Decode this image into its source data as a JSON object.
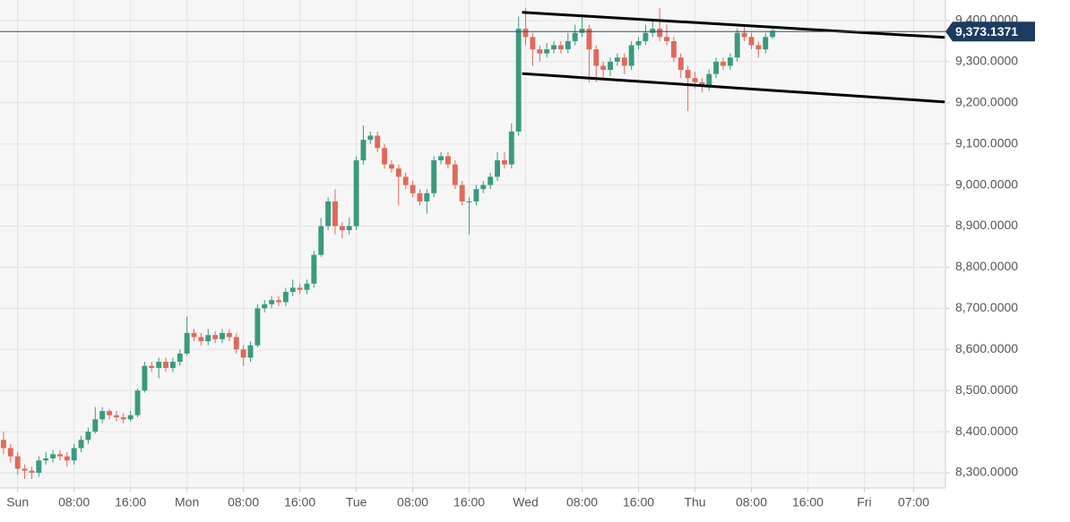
{
  "chart_data": {
    "type": "candlestick",
    "x": [
      -2,
      -1,
      0,
      1,
      2,
      3,
      4,
      5,
      6,
      7,
      8,
      9,
      10,
      11,
      12,
      13,
      14,
      15,
      16,
      17,
      18,
      19,
      20,
      21,
      22,
      23,
      24,
      25,
      26,
      27,
      28,
      29,
      30,
      31,
      32,
      33,
      34,
      35,
      36,
      37,
      38,
      39,
      40,
      41,
      42,
      43,
      44,
      45,
      46,
      47,
      48,
      49,
      50,
      51,
      52,
      53,
      54,
      55,
      56,
      57,
      58,
      59,
      60,
      61,
      62,
      63,
      64,
      65,
      66,
      67,
      68,
      69,
      70,
      71,
      72,
      73,
      74,
      75,
      76,
      77,
      78,
      79,
      80,
      81,
      82,
      83,
      84,
      85,
      86,
      87,
      88,
      89,
      90,
      91,
      92,
      93,
      94,
      95,
      96,
      97,
      98,
      99,
      100,
      101,
      102,
      103,
      104,
      105,
      106,
      107
    ],
    "open": [
      8380,
      8360,
      8340,
      8310,
      8305,
      8300,
      8330,
      8335,
      8345,
      8340,
      8330,
      8360,
      8380,
      8400,
      8430,
      8450,
      8440,
      8435,
      8430,
      8440,
      8500,
      8560,
      8555,
      8570,
      8555,
      8570,
      8590,
      8640,
      8630,
      8620,
      8635,
      8625,
      8640,
      8630,
      8600,
      8580,
      8610,
      8700,
      8710,
      8720,
      8715,
      8740,
      8750,
      8745,
      8760,
      8830,
      8900,
      8960,
      8900,
      8890,
      8900,
      9060,
      9110,
      9120,
      9090,
      9050,
      9040,
      9020,
      9000,
      8980,
      8960,
      8980,
      9060,
      9070,
      9050,
      9000,
      8960,
      8960,
      8990,
      9000,
      9020,
      9060,
      9050,
      9130,
      9380,
      9360,
      9330,
      9320,
      9330,
      9340,
      9330,
      9350,
      9370,
      9380,
      9330,
      9290,
      9280,
      9300,
      9310,
      9290,
      9340,
      9350,
      9370,
      9380,
      9360,
      9350,
      9310,
      9280,
      9260,
      9250,
      9240,
      9270,
      9300,
      9290,
      9310,
      9370,
      9360,
      9340,
      9330,
      9360
    ],
    "high": [
      8400,
      8370,
      8350,
      8320,
      8315,
      8340,
      8350,
      8355,
      8355,
      8350,
      8370,
      8390,
      8410,
      8460,
      8460,
      8455,
      8450,
      8445,
      8450,
      8505,
      8570,
      8570,
      8580,
      8580,
      8580,
      8600,
      8680,
      8650,
      8640,
      8650,
      8645,
      8650,
      8650,
      8640,
      8610,
      8620,
      8710,
      8720,
      8730,
      8730,
      8750,
      8770,
      8760,
      8770,
      8840,
      8920,
      8970,
      8990,
      8910,
      8920,
      9070,
      9145,
      9130,
      9130,
      9100,
      9060,
      9050,
      9030,
      9010,
      8990,
      8990,
      9070,
      9080,
      9080,
      9060,
      9010,
      8970,
      9000,
      9010,
      9030,
      9080,
      9080,
      9150,
      9410,
      9430,
      9370,
      9340,
      9345,
      9350,
      9350,
      9370,
      9390,
      9410,
      9390,
      9340,
      9300,
      9310,
      9320,
      9320,
      9350,
      9360,
      9390,
      9400,
      9430,
      9390,
      9360,
      9320,
      9290,
      9275,
      9260,
      9280,
      9310,
      9310,
      9320,
      9380,
      9385,
      9370,
      9350,
      9370,
      9385
    ],
    "low": [
      8345,
      8325,
      8295,
      8285,
      8285,
      8290,
      8320,
      8325,
      8330,
      8315,
      8320,
      8350,
      8370,
      8395,
      8420,
      8430,
      8425,
      8420,
      8425,
      8435,
      8495,
      8545,
      8530,
      8545,
      8545,
      8560,
      8585,
      8620,
      8610,
      8610,
      8615,
      8615,
      8620,
      8590,
      8560,
      8570,
      8605,
      8690,
      8700,
      8705,
      8705,
      8730,
      8735,
      8735,
      8750,
      8825,
      8890,
      8880,
      8870,
      8880,
      8890,
      9050,
      9100,
      9080,
      9040,
      9030,
      8950,
      8990,
      8970,
      8950,
      8930,
      8970,
      9050,
      9040,
      8990,
      8950,
      8880,
      8950,
      8980,
      8990,
      9010,
      9040,
      9040,
      9120,
      9340,
      9290,
      9300,
      9310,
      9320,
      9320,
      9320,
      9340,
      9360,
      9250,
      9250,
      9260,
      9265,
      9290,
      9270,
      9280,
      9330,
      9340,
      9360,
      9350,
      9340,
      9300,
      9260,
      9180,
      9235,
      9225,
      9230,
      9260,
      9280,
      9280,
      9300,
      9350,
      9330,
      9310,
      9320,
      9355
    ],
    "close": [
      8360,
      8340,
      8310,
      8305,
      8300,
      8330,
      8335,
      8345,
      8340,
      8330,
      8360,
      8380,
      8400,
      8430,
      8450,
      8440,
      8435,
      8430,
      8440,
      8500,
      8560,
      8555,
      8570,
      8555,
      8570,
      8590,
      8640,
      8630,
      8620,
      8635,
      8625,
      8640,
      8630,
      8600,
      8580,
      8610,
      8700,
      8710,
      8720,
      8715,
      8740,
      8750,
      8745,
      8760,
      8830,
      8900,
      8960,
      8900,
      8890,
      8900,
      9060,
      9110,
      9120,
      9090,
      9050,
      9040,
      9020,
      9000,
      8980,
      8960,
      8980,
      9060,
      9070,
      9050,
      9000,
      8960,
      8960,
      8990,
      9000,
      9020,
      9060,
      9050,
      9130,
      9380,
      9360,
      9330,
      9320,
      9330,
      9340,
      9330,
      9350,
      9370,
      9380,
      9330,
      9290,
      9280,
      9300,
      9310,
      9290,
      9340,
      9350,
      9370,
      9380,
      9360,
      9350,
      9310,
      9280,
      9260,
      9250,
      9240,
      9270,
      9300,
      9290,
      9310,
      9370,
      9360,
      9340,
      9330,
      9360,
      9375
    ],
    "up_color": "#3a9a7e",
    "down_color": "#e0695b",
    "xlim": [
      -2.5,
      131.5
    ],
    "xticks": [
      {
        "value": 0,
        "label": "Sun"
      },
      {
        "value": 8,
        "label": "08:00"
      },
      {
        "value": 16,
        "label": "16:00"
      },
      {
        "value": 24,
        "label": "Mon"
      },
      {
        "value": 32,
        "label": "08:00"
      },
      {
        "value": 40,
        "label": "16:00"
      },
      {
        "value": 48,
        "label": "Tue"
      },
      {
        "value": 56,
        "label": "08:00"
      },
      {
        "value": 64,
        "label": "16:00"
      },
      {
        "value": 72,
        "label": "Wed"
      },
      {
        "value": 80,
        "label": "08:00"
      },
      {
        "value": 88,
        "label": "16:00"
      },
      {
        "value": 96,
        "label": "Thu"
      },
      {
        "value": 104,
        "label": "08:00"
      },
      {
        "value": 112,
        "label": "16:00"
      },
      {
        "value": 120,
        "label": "Fri"
      },
      {
        "value": 127,
        "label": "07:00"
      }
    ],
    "ylim": [
      8263,
      9450
    ],
    "yticks": [
      {
        "value": 8300,
        "label": "8,300.0000"
      },
      {
        "value": 8400,
        "label": "8,400.0000"
      },
      {
        "value": 8500,
        "label": "8,500.0000"
      },
      {
        "value": 8600,
        "label": "8,600.0000"
      },
      {
        "value": 8700,
        "label": "8,700.0000"
      },
      {
        "value": 8800,
        "label": "8,800.0000"
      },
      {
        "value": 8900,
        "label": "8,900.0000"
      },
      {
        "value": 9000,
        "label": "9,000.0000"
      },
      {
        "value": 9100,
        "label": "9,100.0000"
      },
      {
        "value": 9200,
        "label": "9,200.0000"
      },
      {
        "value": 9300,
        "label": "9,300.0000"
      },
      {
        "value": 9400,
        "label": "9,400.0000"
      }
    ],
    "grid": true,
    "current_price": {
      "value": 9373.1371,
      "label": "9,373.1371"
    },
    "trend_lines": [
      {
        "x": [
          71.5,
          131.4
        ],
        "y": [
          9420,
          9359
        ]
      },
      {
        "x": [
          71.5,
          131.4
        ],
        "y": [
          9271,
          9202
        ]
      }
    ]
  }
}
